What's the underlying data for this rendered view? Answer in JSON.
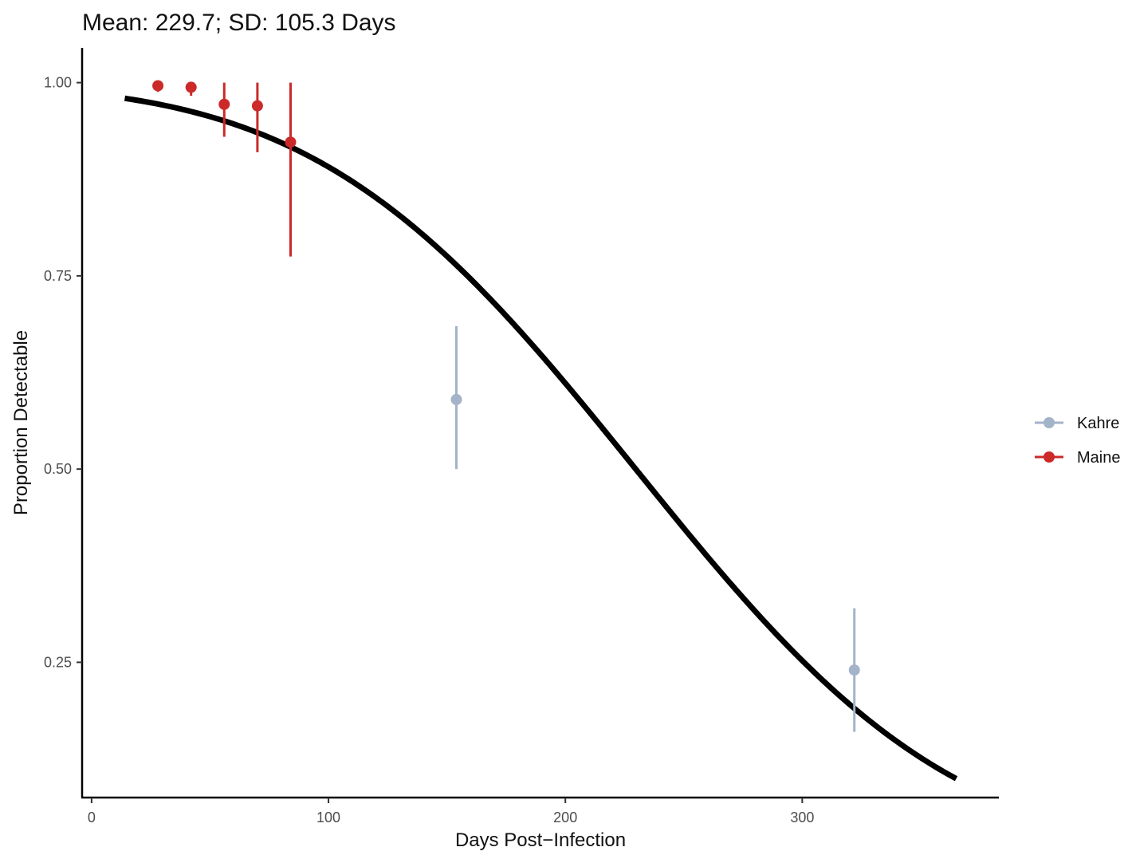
{
  "chart_data": {
    "type": "scatter",
    "title": "Mean: 229.7; SD: 105.3 Days",
    "xlabel": "Days Post−Infection",
    "ylabel": "Proportion Detectable",
    "xlim": [
      -4,
      383
    ],
    "ylim": [
      0.075,
      1.045
    ],
    "x_ticks": [
      0,
      100,
      200,
      300
    ],
    "x_tick_labels": [
      "0",
      "100",
      "200",
      "300"
    ],
    "y_ticks": [
      0.25,
      0.5,
      0.75,
      1.0
    ],
    "y_tick_labels": [
      "0.25",
      "0.50",
      "0.75",
      "1.00"
    ],
    "grid": false,
    "legend_position": "right",
    "curve": {
      "mean": 229.7,
      "sd": 105.3,
      "x_range": [
        14,
        365
      ],
      "color": "#000000"
    },
    "series": [
      {
        "name": "Kahre",
        "color": "#a3b3c9",
        "points": [
          {
            "x": 154,
            "y": 0.59,
            "ymin": 0.5,
            "ymax": 0.685
          },
          {
            "x": 322,
            "y": 0.24,
            "ymin": 0.16,
            "ymax": 0.32
          }
        ]
      },
      {
        "name": "Maine",
        "color": "#cc2929",
        "points": [
          {
            "x": 28,
            "y": 0.996,
            "ymin": 0.988,
            "ymax": 1.0
          },
          {
            "x": 42,
            "y": 0.994,
            "ymin": 0.983,
            "ymax": 1.0
          },
          {
            "x": 56,
            "y": 0.972,
            "ymin": 0.93,
            "ymax": 1.0
          },
          {
            "x": 70,
            "y": 0.97,
            "ymin": 0.91,
            "ymax": 1.0
          },
          {
            "x": 84,
            "y": 0.923,
            "ymin": 0.775,
            "ymax": 1.0
          }
        ]
      }
    ]
  }
}
